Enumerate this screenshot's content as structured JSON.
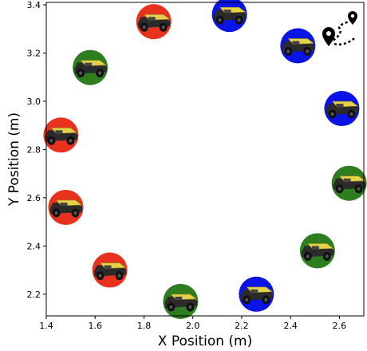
{
  "chart_data": {
    "type": "scatter",
    "title": "",
    "xlabel": "X Position (m)",
    "ylabel": "Y Position (m)",
    "xlim": [
      1.4,
      2.7
    ],
    "ylim": [
      2.11,
      3.41
    ],
    "xticks": [
      "1.4",
      "1.6",
      "1.8",
      "2.0",
      "2.2",
      "2.4",
      "2.6"
    ],
    "yticks": [
      "2.2",
      "2.4",
      "2.6",
      "2.8",
      "3.0",
      "3.2",
      "3.4"
    ],
    "grid": false,
    "marker": "robot-car-icon",
    "corner_icon": "route-pins-icon",
    "colors": {
      "red": "#e8321e",
      "green": "#2e7d1f",
      "blue": "#0a14e6",
      "robot_body": "#2b2b2b",
      "robot_top": "#e6d24a"
    },
    "points": [
      {
        "x": 1.84,
        "y": 3.33,
        "color": "red"
      },
      {
        "x": 2.15,
        "y": 3.36,
        "color": "blue"
      },
      {
        "x": 2.43,
        "y": 3.23,
        "color": "blue"
      },
      {
        "x": 1.58,
        "y": 3.14,
        "color": "green"
      },
      {
        "x": 2.61,
        "y": 2.97,
        "color": "blue"
      },
      {
        "x": 1.46,
        "y": 2.86,
        "color": "red"
      },
      {
        "x": 2.64,
        "y": 2.66,
        "color": "green"
      },
      {
        "x": 1.48,
        "y": 2.56,
        "color": "red"
      },
      {
        "x": 2.51,
        "y": 2.38,
        "color": "green"
      },
      {
        "x": 1.66,
        "y": 2.3,
        "color": "red"
      },
      {
        "x": 2.26,
        "y": 2.2,
        "color": "blue"
      },
      {
        "x": 1.95,
        "y": 2.17,
        "color": "green"
      }
    ]
  }
}
